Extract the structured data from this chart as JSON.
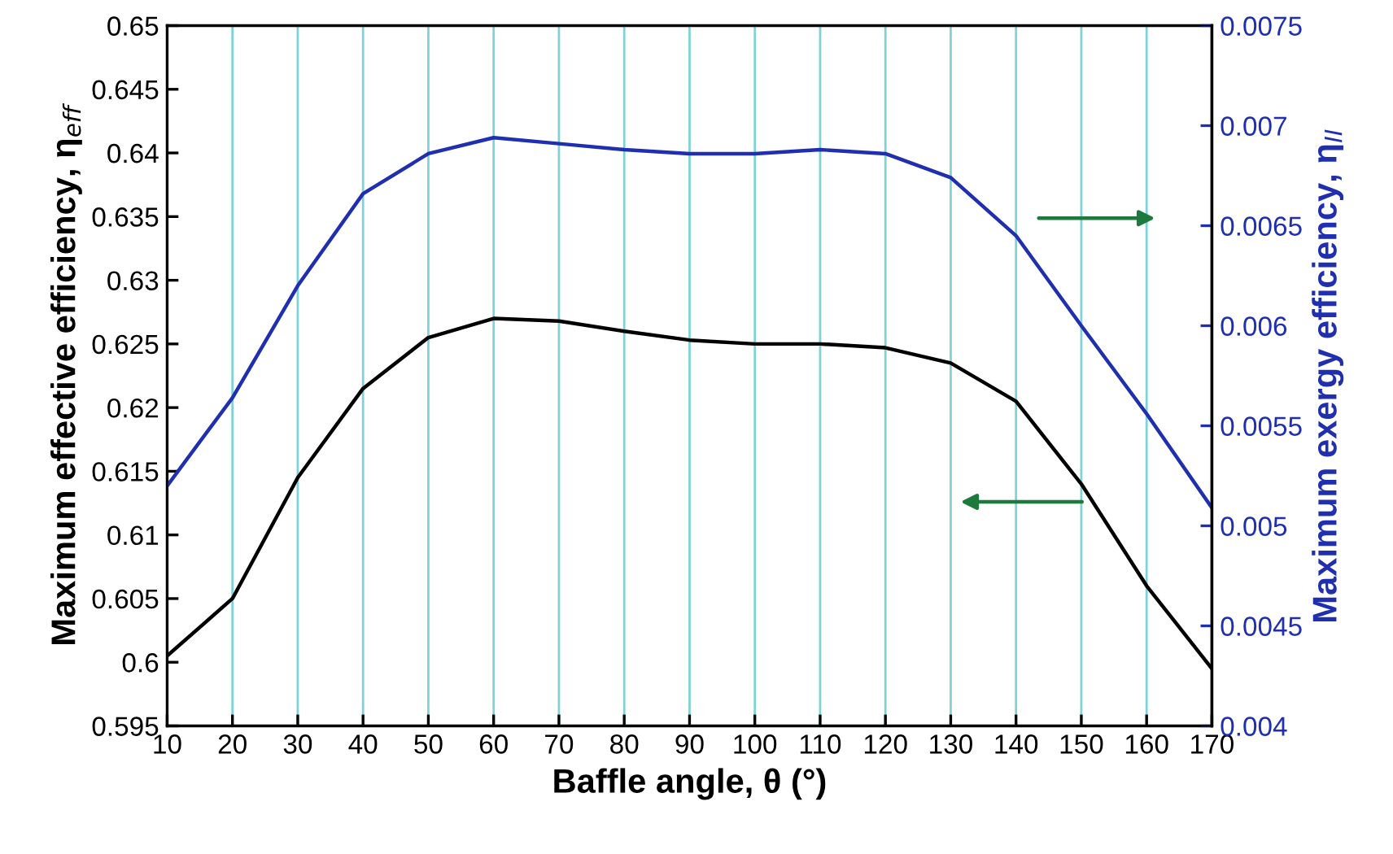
{
  "chart_data": {
    "type": "line",
    "xlabel": "Baffle angle, θ (°)",
    "ylabel": "Maximum effective efficiency, η$_{eff}$",
    "y2label": "Maximum exergy efficiency, η$_{II}$",
    "x": [
      10,
      20,
      30,
      40,
      50,
      60,
      70,
      80,
      90,
      100,
      110,
      120,
      130,
      140,
      150,
      160,
      170
    ],
    "series": [
      {
        "color": "#000000",
        "values": [
          0.6005,
          0.605,
          0.6145,
          0.6215,
          0.6255,
          0.627,
          0.6268,
          0.626,
          0.6253,
          0.625,
          0.625,
          0.6247,
          0.6235,
          0.6205,
          0.614,
          0.606,
          0.5995
        ]
      },
      {
        "color": "#1f2fb0",
        "axis": "y2",
        "values": [
          0.0052,
          0.00564,
          0.0062,
          0.00666,
          0.00686,
          0.00694,
          0.00691,
          0.00688,
          0.00686,
          0.00686,
          0.00688,
          0.00686,
          0.00674,
          0.00645,
          0.006,
          0.00556,
          0.00509
        ]
      }
    ],
    "xlim": [
      10,
      170
    ],
    "xticks": [
      10,
      20,
      30,
      40,
      50,
      60,
      70,
      80,
      90,
      100,
      110,
      120,
      130,
      140,
      150,
      160,
      170
    ],
    "ylim": [
      0.595,
      0.65
    ],
    "yticks": [
      0.595,
      0.6,
      0.605,
      0.61,
      0.615,
      0.62,
      0.625,
      0.63,
      0.635,
      0.64,
      0.645,
      0.65
    ],
    "y2lim": [
      0.004,
      0.0075
    ],
    "y2ticks": [
      0.004,
      0.0045,
      0.005,
      0.0055,
      0.006,
      0.0065,
      0.007,
      0.0075
    ],
    "grid": "x",
    "legend": false,
    "marker": "none",
    "line_style": "solid"
  }
}
